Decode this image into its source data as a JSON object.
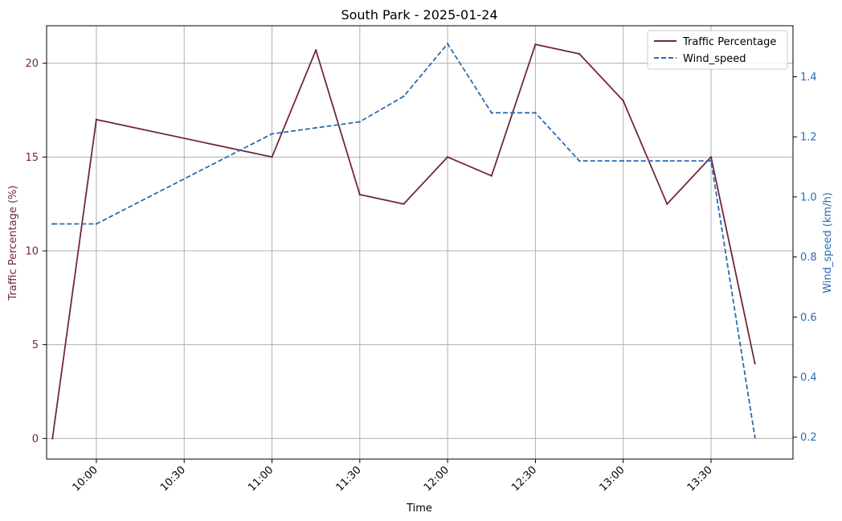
{
  "chart_data": {
    "type": "line",
    "title": "South Park - 2025-01-24",
    "xlabel": "Time",
    "ylabel_left": "Traffic Percentage (%)",
    "ylabel_right": "Wind_speed (km/h)",
    "x": [
      "09:45",
      "10:00",
      "11:00",
      "11:15",
      "11:30",
      "11:45",
      "12:00",
      "12:15",
      "12:30",
      "12:45",
      "13:00",
      "13:15",
      "13:30",
      "13:45"
    ],
    "x_ticks": [
      "10:00",
      "10:30",
      "11:00",
      "11:30",
      "12:00",
      "12:30",
      "13:00",
      "13:30"
    ],
    "xlim": [
      "09:43",
      "13:58"
    ],
    "ylim_left": [
      -1.1,
      22.0
    ],
    "ylim_right": [
      0.127,
      1.57
    ],
    "y_ticks_left": [
      "0",
      "5",
      "10",
      "15",
      "20"
    ],
    "y_ticks_right": [
      "0.2",
      "0.4",
      "0.6",
      "0.8",
      "1.0",
      "1.2",
      "1.4"
    ],
    "grid": true,
    "legend_position": "top-right",
    "series": [
      {
        "name": "Traffic Percentage",
        "axis": "left",
        "style": "solid",
        "color": "#722640",
        "x": [
          "09:45",
          "10:00",
          "11:00",
          "11:15",
          "11:30",
          "11:45",
          "12:00",
          "12:15",
          "12:30",
          "12:45",
          "13:00",
          "13:15",
          "13:30",
          "13:45"
        ],
        "values": [
          0,
          17,
          15,
          20.7,
          13,
          12.5,
          15,
          14,
          21,
          20.5,
          18,
          12.5,
          15,
          4
        ]
      },
      {
        "name": "Wind_speed",
        "axis": "right",
        "style": "dashed",
        "color": "#2b6cb0",
        "x": [
          "09:45",
          "10:00",
          "11:00",
          "11:15",
          "11:30",
          "11:45",
          "12:00",
          "12:15",
          "12:30",
          "12:45",
          "13:00",
          "13:15",
          "13:30",
          "13:45"
        ],
        "values": [
          0.91,
          0.91,
          1.21,
          1.23,
          1.25,
          1.335,
          1.51,
          1.28,
          1.28,
          1.12,
          1.12,
          1.12,
          1.12,
          0.2
        ]
      }
    ],
    "colors": {
      "left_axis": "#722640",
      "right_axis": "#2b6cb0",
      "grid": "#b0b0b0"
    }
  }
}
